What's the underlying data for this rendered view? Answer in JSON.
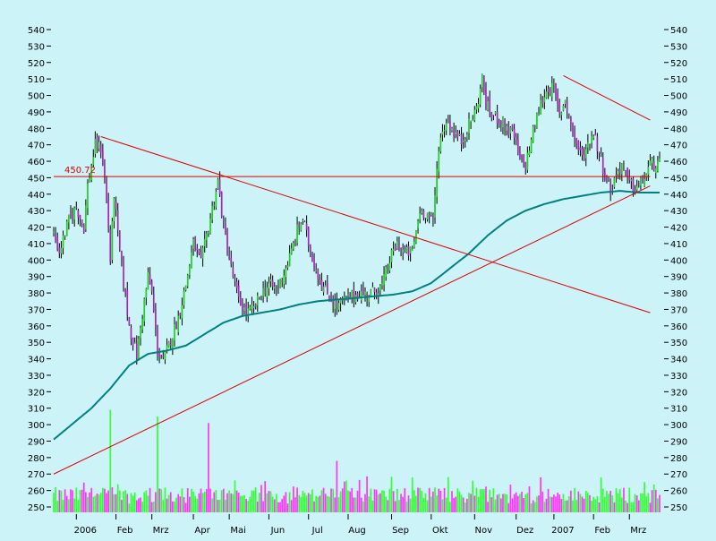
{
  "chart_data": {
    "type": "candlestick",
    "colors": {
      "background": "#ccf3f8",
      "up_candle": "#22cc22",
      "down_candle": "#aa22bb",
      "moving_average": "#008080",
      "trendline": "#dd0000",
      "volume_up": "#33ff33",
      "volume_down": "#ff33ff"
    },
    "ylim": [
      245,
      545
    ],
    "y_ticks": [
      250,
      260,
      270,
      280,
      290,
      300,
      310,
      320,
      330,
      340,
      350,
      360,
      370,
      380,
      390,
      400,
      410,
      420,
      430,
      440,
      450,
      460,
      470,
      480,
      490,
      500,
      510,
      520,
      530,
      540
    ],
    "x_ticks": [
      {
        "label": "2006",
        "i": 12
      },
      {
        "label": "Feb",
        "i": 33
      },
      {
        "label": "Mrz",
        "i": 52
      },
      {
        "label": "Apr",
        "i": 74
      },
      {
        "label": "Mai",
        "i": 93
      },
      {
        "label": "Jun",
        "i": 114
      },
      {
        "label": "Jul",
        "i": 135
      },
      {
        "label": "Aug",
        "i": 156
      },
      {
        "label": "Sep",
        "i": 179
      },
      {
        "label": "Okt",
        "i": 200
      },
      {
        "label": "Nov",
        "i": 223
      },
      {
        "label": "Dez",
        "i": 245
      },
      {
        "label": "2007",
        "i": 265
      },
      {
        "label": "Feb",
        "i": 286
      },
      {
        "label": "Mrz",
        "i": 305
      }
    ],
    "n_days": 322,
    "price_anchors": [
      [
        0,
        416
      ],
      [
        3,
        405
      ],
      [
        8,
        424
      ],
      [
        12,
        432
      ],
      [
        16,
        420
      ],
      [
        18,
        445
      ],
      [
        22,
        470
      ],
      [
        25,
        468
      ],
      [
        27,
        450
      ],
      [
        29,
        420
      ],
      [
        30,
        400
      ],
      [
        32,
        440
      ],
      [
        34,
        415
      ],
      [
        36,
        395
      ],
      [
        40,
        360
      ],
      [
        44,
        342
      ],
      [
        48,
        375
      ],
      [
        50,
        390
      ],
      [
        52,
        380
      ],
      [
        55,
        345
      ],
      [
        58,
        338
      ],
      [
        60,
        345
      ],
      [
        63,
        355
      ],
      [
        66,
        365
      ],
      [
        70,
        385
      ],
      [
        74,
        410
      ],
      [
        78,
        398
      ],
      [
        82,
        420
      ],
      [
        87,
        448
      ],
      [
        90,
        420
      ],
      [
        94,
        395
      ],
      [
        98,
        375
      ],
      [
        102,
        368
      ],
      [
        106,
        370
      ],
      [
        110,
        380
      ],
      [
        114,
        385
      ],
      [
        118,
        382
      ],
      [
        122,
        392
      ],
      [
        126,
        405
      ],
      [
        129,
        418
      ],
      [
        132,
        425
      ],
      [
        135,
        410
      ],
      [
        138,
        398
      ],
      [
        142,
        385
      ],
      [
        146,
        378
      ],
      [
        150,
        372
      ],
      [
        154,
        375
      ],
      [
        158,
        378
      ],
      [
        162,
        380
      ],
      [
        166,
        379
      ],
      [
        170,
        381
      ],
      [
        174,
        384
      ],
      [
        178,
        400
      ],
      [
        182,
        410
      ],
      [
        186,
        404
      ],
      [
        190,
        405
      ],
      [
        194,
        430
      ],
      [
        198,
        428
      ],
      [
        201,
        423
      ],
      [
        204,
        470
      ],
      [
        208,
        485
      ],
      [
        212,
        478
      ],
      [
        216,
        472
      ],
      [
        220,
        482
      ],
      [
        224,
        492
      ],
      [
        227,
        510
      ],
      [
        229,
        495
      ],
      [
        232,
        488
      ],
      [
        236,
        486
      ],
      [
        240,
        480
      ],
      [
        244,
        475
      ],
      [
        247,
        460
      ],
      [
        250,
        458
      ],
      [
        254,
        478
      ],
      [
        258,
        495
      ],
      [
        262,
        505
      ],
      [
        265,
        503
      ],
      [
        268,
        488
      ],
      [
        271,
        498
      ],
      [
        274,
        482
      ],
      [
        277,
        470
      ],
      [
        280,
        462
      ],
      [
        283,
        470
      ],
      [
        286,
        478
      ],
      [
        289,
        465
      ],
      [
        292,
        452
      ],
      [
        295,
        442
      ],
      [
        298,
        452
      ],
      [
        301,
        458
      ],
      [
        304,
        448
      ],
      [
        307,
        444
      ],
      [
        310,
        445
      ],
      [
        313,
        450
      ],
      [
        316,
        458
      ]
    ],
    "ma_anchors": [
      [
        0,
        291
      ],
      [
        20,
        310
      ],
      [
        30,
        322
      ],
      [
        40,
        336
      ],
      [
        50,
        343
      ],
      [
        60,
        345
      ],
      [
        70,
        348
      ],
      [
        80,
        355
      ],
      [
        90,
        362
      ],
      [
        100,
        366
      ],
      [
        110,
        368
      ],
      [
        120,
        370
      ],
      [
        130,
        373
      ],
      [
        140,
        375
      ],
      [
        150,
        376
      ],
      [
        160,
        377
      ],
      [
        170,
        378
      ],
      [
        180,
        379
      ],
      [
        190,
        381
      ],
      [
        200,
        386
      ],
      [
        210,
        395
      ],
      [
        220,
        404
      ],
      [
        230,
        415
      ],
      [
        240,
        424
      ],
      [
        250,
        430
      ],
      [
        260,
        434
      ],
      [
        270,
        437
      ],
      [
        280,
        439
      ],
      [
        290,
        441
      ],
      [
        300,
        442
      ],
      [
        310,
        441
      ],
      [
        316,
        441
      ]
    ],
    "trendlines": [
      {
        "from": [
          0,
          270
        ],
        "to": [
          316,
          445
        ]
      },
      {
        "from": [
          25,
          475
        ],
        "to": [
          316,
          368
        ]
      },
      {
        "from": [
          270,
          512
        ],
        "to": [
          316,
          485
        ]
      },
      {
        "from": [
          0,
          450.72
        ],
        "to": [
          316,
          450.72
        ]
      }
    ],
    "annotation": "450.72",
    "volume_spikes": [
      [
        30,
        309
      ],
      [
        55,
        305
      ],
      [
        82,
        301
      ],
      [
        150,
        278
      ],
      [
        190,
        268
      ],
      [
        222,
        266
      ],
      [
        258,
        268
      ],
      [
        290,
        268
      ]
    ]
  }
}
